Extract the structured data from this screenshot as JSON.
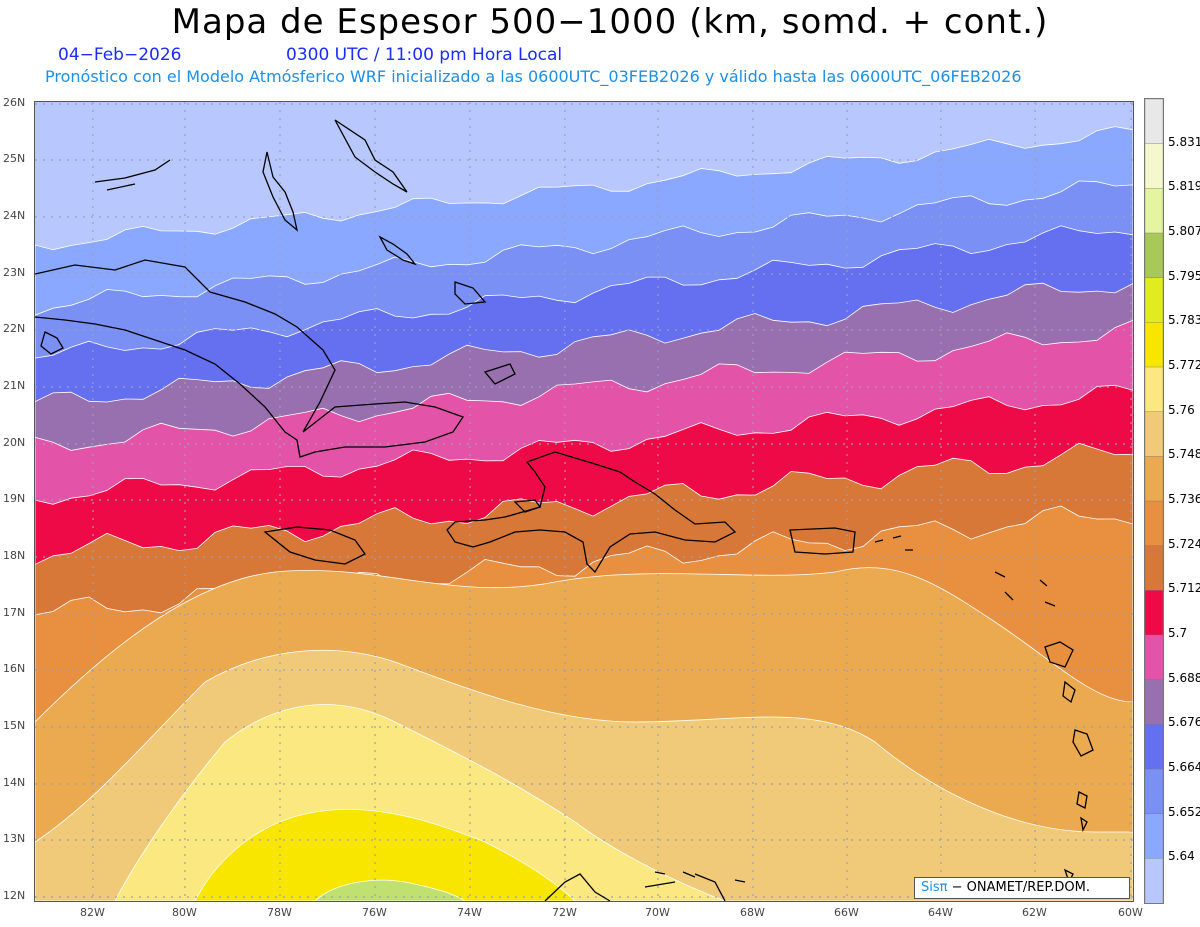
{
  "header": {
    "title": "Mapa de Espesor 500−1000 (km, somd. + cont.)",
    "date": "04−Feb−2026",
    "time": "0300 UTC / 11:00 pm Hora Local",
    "model_info": "Pronóstico con el Modelo Atmósferico WRF inicializado a las 0600UTC_03FEB2026 y válido hasta las  0600UTC_06FEB2026"
  },
  "map": {
    "lat_labels": [
      "26N",
      "25N",
      "24N",
      "23N",
      "22N",
      "21N",
      "20N",
      "19N",
      "18N",
      "17N",
      "16N",
      "15N",
      "14N",
      "13N",
      "12N"
    ],
    "lon_labels": [
      "82W",
      "80W",
      "78W",
      "76W",
      "74W",
      "72W",
      "70W",
      "68W",
      "66W",
      "64W",
      "62W",
      "60W"
    ],
    "band_colors": [
      "#b8c8ff",
      "#8aa8ff",
      "#7a90f4",
      "#6470f0",
      "#9870b0",
      "#e354a8",
      "#ee0a46",
      "#d87838",
      "#e89040",
      "#ecaa50",
      "#f0ca78",
      "#fce880",
      "#f8e600",
      "#c0e070"
    ]
  },
  "colorbar": {
    "labels": [
      "5.831",
      "5.819",
      "5.807",
      "5.795",
      "5.783",
      "5.772",
      "5.76",
      "5.748",
      "5.736",
      "5.724",
      "5.712",
      "5.7",
      "5.688",
      "5.676",
      "5.664",
      "5.652",
      "5.64"
    ],
    "colors": [
      "#e8e8e8",
      "#f4f8cc",
      "#e4f4a0",
      "#a8c858",
      "#e0ec20",
      "#f8e600",
      "#fce880",
      "#f0ca78",
      "#ecaa50",
      "#e89040",
      "#d87838",
      "#ee0a46",
      "#e354a8",
      "#9870b0",
      "#6470f0",
      "#7a90f4",
      "#8aa8ff",
      "#b8c8ff"
    ]
  },
  "credit": {
    "logo": "Sisπ",
    "text": " − ONAMET/REP.DOM."
  }
}
